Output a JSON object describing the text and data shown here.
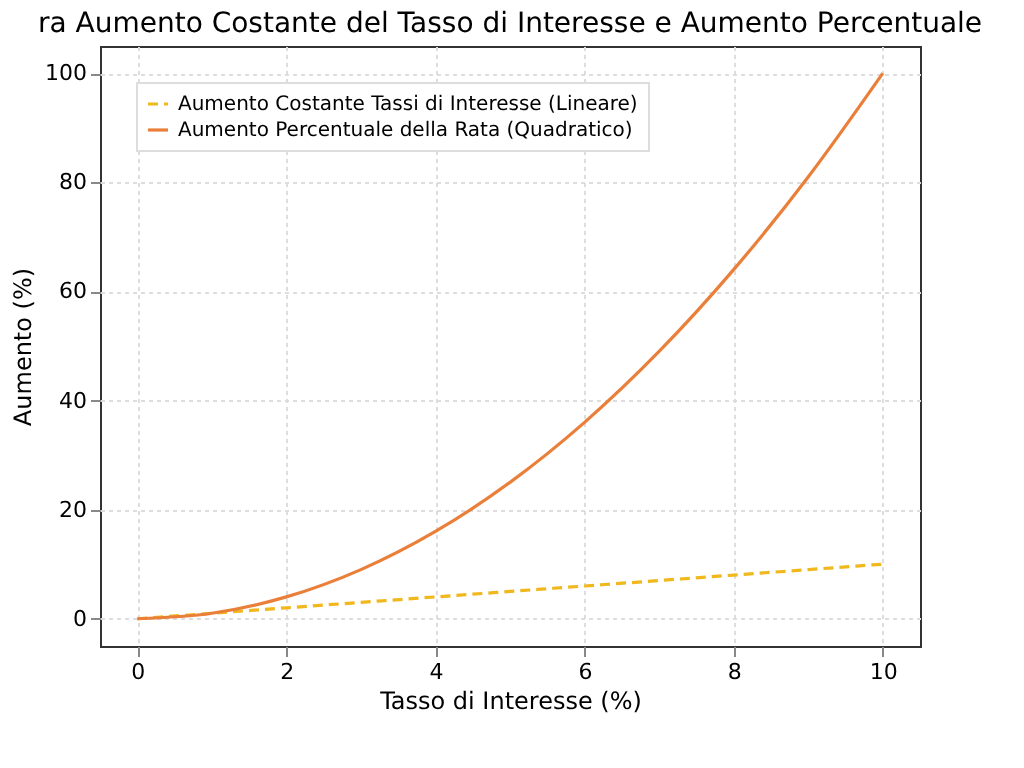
{
  "chart_data": {
    "type": "line",
    "title": "ra Aumento Costante del Tasso di Interesse e Aumento Percentuale",
    "xlabel": "Tasso di Interesse (%)",
    "ylabel": "Aumento (%)",
    "x": [
      0,
      1,
      2,
      3,
      4,
      5,
      6,
      7,
      8,
      9,
      10
    ],
    "series": [
      {
        "name": "Aumento Costante Tassi di Interesse (Lineare)",
        "color": "#f0b81c",
        "line_style": "dashed",
        "values": [
          0,
          1,
          2,
          3,
          4,
          5,
          6,
          7,
          8,
          9,
          10
        ]
      },
      {
        "name": "Aumento Percentuale della Rata (Quadratico)",
        "color": "#ea7f3a",
        "line_style": "solid",
        "values": [
          0,
          1,
          4,
          9,
          16,
          25,
          36,
          49,
          64,
          81,
          100
        ]
      }
    ],
    "xlim": [
      -0.5,
      10.5
    ],
    "xticks": [
      0,
      2,
      4,
      6,
      8,
      10
    ],
    "ylim": [
      -5,
      105
    ],
    "yticks": [
      0,
      20,
      40,
      60,
      80,
      100
    ],
    "grid": true,
    "legend": "top left"
  }
}
